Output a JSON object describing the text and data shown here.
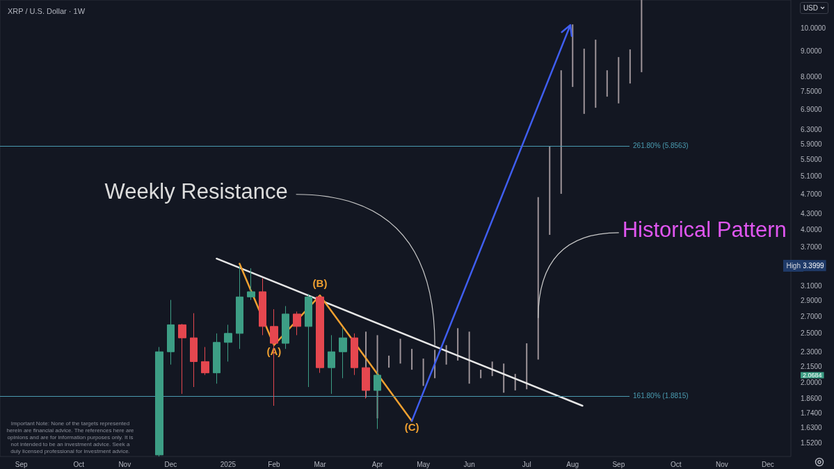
{
  "chart_data": {
    "type": "candlestick",
    "title": "XRP / U.S. Dollar · 1W",
    "log": true,
    "xlim": [
      "2024-08-20",
      "2025-12-15"
    ],
    "ylim": [
      1.43,
      11.35
    ],
    "xticks": [
      {
        "value": "2024-09-02",
        "label": "Sep"
      },
      {
        "value": "2024-10-07",
        "label": "Oct"
      },
      {
        "value": "2024-11-04",
        "label": "Nov"
      },
      {
        "value": "2024-12-02",
        "label": "Dec"
      },
      {
        "value": "2025-01-06",
        "label": "2025"
      },
      {
        "value": "2025-02-03",
        "label": "Feb"
      },
      {
        "value": "2025-03-03",
        "label": "Mar"
      },
      {
        "value": "2025-04-07",
        "label": "Apr"
      },
      {
        "value": "2025-05-05",
        "label": "May"
      },
      {
        "value": "2025-06-02",
        "label": "Jun"
      },
      {
        "value": "2025-07-07",
        "label": "Jul"
      },
      {
        "value": "2025-08-04",
        "label": "Aug"
      },
      {
        "value": "2025-09-01",
        "label": "Sep"
      },
      {
        "value": "2025-10-06",
        "label": "Oct"
      },
      {
        "value": "2025-11-03",
        "label": "Nov"
      },
      {
        "value": "2025-12-01",
        "label": "Dec"
      }
    ],
    "yticks": [
      {
        "value": 1.52,
        "label": "1.5200"
      },
      {
        "value": 1.63,
        "label": "1.6300"
      },
      {
        "value": 1.74,
        "label": "1.7400"
      },
      {
        "value": 1.86,
        "label": "1.8600"
      },
      {
        "value": 2,
        "label": "2.0000"
      },
      {
        "value": 2.0684,
        "label": "2.0684"
      },
      {
        "value": 2.15,
        "label": "2.1500"
      },
      {
        "value": 2.3,
        "label": "2.3000"
      },
      {
        "value": 2.5,
        "label": "2.5000"
      },
      {
        "value": 2.7,
        "label": "2.7000"
      },
      {
        "value": 2.9,
        "label": "2.9000"
      },
      {
        "value": 3.1,
        "label": "3.1000"
      },
      {
        "value": 3.3999,
        "label": "3.3999"
      },
      {
        "value": 3.7,
        "label": "3.7000"
      },
      {
        "value": 4,
        "label": "4.0000"
      },
      {
        "value": 4.3,
        "label": "4.3000"
      },
      {
        "value": 4.7,
        "label": "4.7000"
      },
      {
        "value": 5.1,
        "label": "5.1000"
      },
      {
        "value": 5.5,
        "label": "5.5000"
      },
      {
        "value": 5.9,
        "label": "5.9000"
      },
      {
        "value": 6.3,
        "label": "6.3000"
      },
      {
        "value": 6.9,
        "label": "6.9000"
      },
      {
        "value": 7.5,
        "label": "7.5000"
      },
      {
        "value": 8,
        "label": "8.0000"
      },
      {
        "value": 9,
        "label": "9.0000"
      },
      {
        "value": 10,
        "label": "10.0000"
      }
    ],
    "series": [
      {
        "x": [
          "2024-11-25",
          "2024-12-02",
          "2024-12-09",
          "2024-12-16",
          "2024-12-23",
          "2024-12-30",
          "2025-01-06",
          "2025-01-13",
          "2025-01-20",
          "2025-01-27",
          "2025-02-03",
          "2025-02-10",
          "2025-02-17",
          "2025-02-24",
          "2025-03-03",
          "2025-03-10",
          "2025-03-17",
          "2025-03-24",
          "2025-03-31",
          "2025-04-07"
        ],
        "ohlc": [
          [
            1.44,
            2.35,
            1.43,
            2.3
          ],
          [
            2.3,
            2.91,
            2.17,
            2.6
          ],
          [
            2.6,
            2.61,
            1.9,
            2.45
          ],
          [
            2.45,
            2.74,
            1.96,
            2.2
          ],
          [
            2.2,
            2.35,
            2.07,
            2.09
          ],
          [
            2.09,
            2.5,
            1.99,
            2.4
          ],
          [
            2.4,
            2.6,
            2.2,
            2.5
          ],
          [
            2.5,
            3.3999,
            2.33,
            2.95
          ],
          [
            2.95,
            3.36,
            2.91,
            3.02
          ],
          [
            3.02,
            3.21,
            2.48,
            2.58
          ],
          [
            2.58,
            2.79,
            1.8,
            2.39
          ],
          [
            2.39,
            2.83,
            2.33,
            2.73
          ],
          [
            2.73,
            2.76,
            2.48,
            2.58
          ],
          [
            2.58,
            2.99,
            1.96,
            2.95
          ],
          [
            2.95,
            2.97,
            2.09,
            2.14
          ],
          [
            2.14,
            2.48,
            1.9,
            2.3
          ],
          [
            2.3,
            2.56,
            2.04,
            2.45
          ],
          [
            2.45,
            2.5,
            2.07,
            2.14
          ],
          [
            2.14,
            2.15,
            1.86,
            1.93
          ],
          [
            1.93,
            2.1,
            1.62,
            2.0684
          ]
        ],
        "colors": [
          "#3d9e85",
          "#3d9e85",
          "#e5474f",
          "#e5474f",
          "#e5474f",
          "#3d9e85",
          "#3d9e85",
          "#3d9e85",
          "#3d9e85",
          "#e5474f",
          "#e5474f",
          "#3d9e85",
          "#e5474f",
          "#3d9e85",
          "#e5474f",
          "#3d9e85",
          "#3d9e85",
          "#e5474f",
          "#e5474f",
          "#3d9e85"
        ]
      },
      {
        "type": "bar",
        "color": "#9e9499",
        "x": [
          "2025-03-31",
          "2025-04-07",
          "2025-04-14",
          "2025-04-21",
          "2025-04-28",
          "2025-05-05",
          "2025-05-12",
          "2025-05-19",
          "2025-05-26",
          "2025-06-02",
          "2025-06-09",
          "2025-06-16",
          "2025-06-23",
          "2025-06-30",
          "2025-07-07",
          "2025-07-14",
          "2025-07-21",
          "2025-07-28",
          "2025-08-04",
          "2025-08-11",
          "2025-08-18",
          "2025-08-25",
          "2025-09-01",
          "2025-09-08",
          "2025-09-15"
        ],
        "base": [
          1.87,
          1.7,
          2.14,
          2.18,
          2.12,
          1.97,
          2.04,
          2.17,
          2.21,
          1.99,
          2.04,
          2.06,
          1.91,
          1.93,
          1.94,
          2.22,
          3.91,
          4.71,
          7.65,
          6.77,
          6.96,
          7.32,
          7.1,
          7.77,
          8.18
        ],
        "values": [
          0.65,
          0.78,
          0.12,
          0.26,
          0.21,
          0.26,
          0.28,
          0.2,
          0.35,
          0.53,
          0.08,
          0.14,
          0.27,
          0.15,
          0.45,
          2.42,
          1.93,
          3.54,
          2.51,
          2.33,
          2.52,
          0.93,
          1.66,
          1.3,
          3.17
        ]
      },
      {
        "type": "line",
        "color": "#e6e6e6",
        "x": [
          "2024-12-30",
          "2025-08-10"
        ],
        "values": [
          3.51,
          1.8
        ]
      },
      {
        "type": "line",
        "color": "#f0a030",
        "x": [
          "2025-01-13",
          "2025-02-03",
          "2025-03-03",
          "2025-04-28"
        ],
        "values": [
          3.43,
          2.37,
          2.97,
          1.68
        ],
        "value_labels": [
          null,
          "(A)",
          "(B)",
          "(C)"
        ]
      }
    ],
    "ref_lines": [
      {
        "axis": "y",
        "value": 5.8563,
        "label": "261.80% (5.8563)",
        "color": "#4a9bb0",
        "line_style": "solid"
      },
      {
        "axis": "y",
        "value": 1.8815,
        "label": "161.80% (1.8815)",
        "color": "#4a9bb0",
        "line_style": "solid"
      }
    ],
    "annotations": [
      {
        "text": "Weekly Resistance",
        "x": "2025-05-12",
        "y": 2.37
      },
      {
        "text": "Historical Pattern",
        "x": "2025-07-14",
        "y": 2.68
      },
      "Important Note: None of the targets represented herein are financial advice. The references here are opinions and are for information purposes only. It is not intended to be an investment advice. Seek a duly licensed professional for investment advice.",
      "USD",
      {
        "text": "High",
        "y": 3.3999
      }
    ]
  }
}
